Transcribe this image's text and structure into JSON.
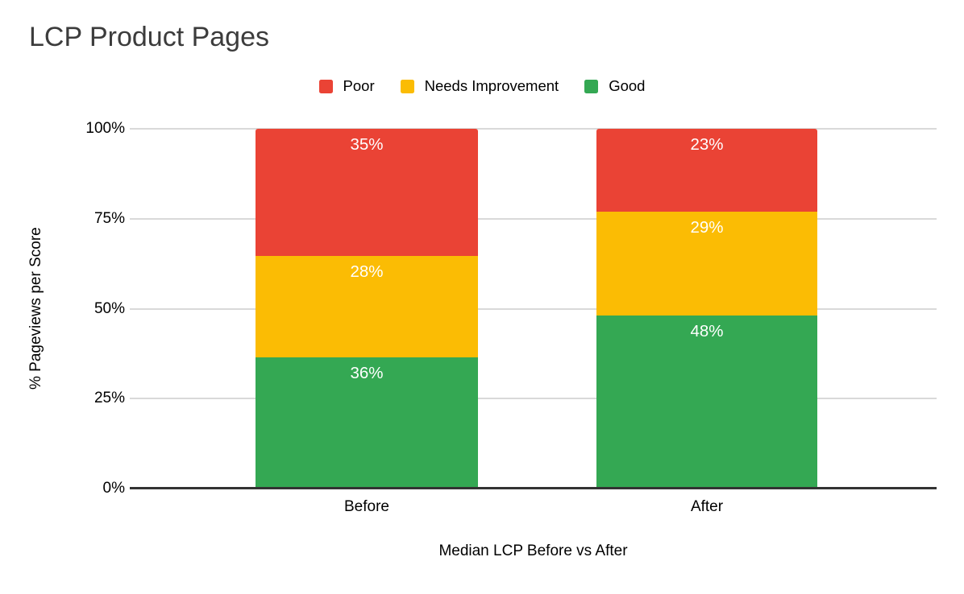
{
  "title": "LCP Product Pages",
  "chart_data": {
    "type": "bar",
    "stacked": true,
    "title": "LCP Product Pages",
    "xlabel": "Median LCP Before vs After",
    "ylabel": "% Pageviews per Score",
    "categories": [
      "Before",
      "After"
    ],
    "series": [
      {
        "name": "Poor",
        "color": "#EA4335",
        "values": [
          35,
          23
        ],
        "labels": [
          "35%",
          "23%"
        ]
      },
      {
        "name": "Needs Improvement",
        "color": "#FBBC04",
        "values": [
          28,
          29
        ],
        "labels": [
          "28%",
          "29%"
        ]
      },
      {
        "name": "Good",
        "color": "#34A853",
        "values": [
          36,
          48
        ],
        "labels": [
          "36%",
          "48%"
        ]
      }
    ],
    "yticks": [
      "100%",
      "75%",
      "50%",
      "25%",
      "0%"
    ],
    "ylim": [
      0,
      100
    ],
    "grid": true,
    "legend_position": "top",
    "data_label_color": "#FFFFFF",
    "gridline_color": "#D9D9D9",
    "axis_line_color": "#333333",
    "title_color": "#3C3C3C"
  }
}
